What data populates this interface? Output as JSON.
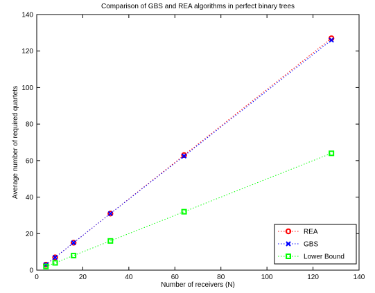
{
  "chart_data": {
    "type": "line",
    "title": "Comparison of GBS and REA algorithms in perfect binary trees",
    "xlabel": "Number of receivers (N)",
    "ylabel": "Average number of required quartets",
    "xlim": [
      0,
      140
    ],
    "ylim": [
      0,
      140
    ],
    "xticks": [
      0,
      20,
      40,
      60,
      80,
      100,
      120,
      140
    ],
    "yticks": [
      0,
      20,
      40,
      60,
      80,
      100,
      120,
      140
    ],
    "grid": false,
    "legend_position": "bottom-right",
    "x": [
      4,
      8,
      16,
      32,
      64,
      128
    ],
    "series": [
      {
        "name": "REA",
        "values": [
          3,
          7,
          15,
          31,
          63,
          127
        ],
        "color": "#ff0000",
        "marker": "circle",
        "line": "dotted"
      },
      {
        "name": "GBS",
        "values": [
          3,
          7,
          15,
          31,
          62.5,
          126
        ],
        "color": "#0000ff",
        "marker": "x",
        "line": "dotted"
      },
      {
        "name": "Lower Bound",
        "values": [
          2,
          4,
          8,
          16,
          32,
          64
        ],
        "color": "#00ff00",
        "marker": "square",
        "line": "dotted"
      }
    ]
  }
}
